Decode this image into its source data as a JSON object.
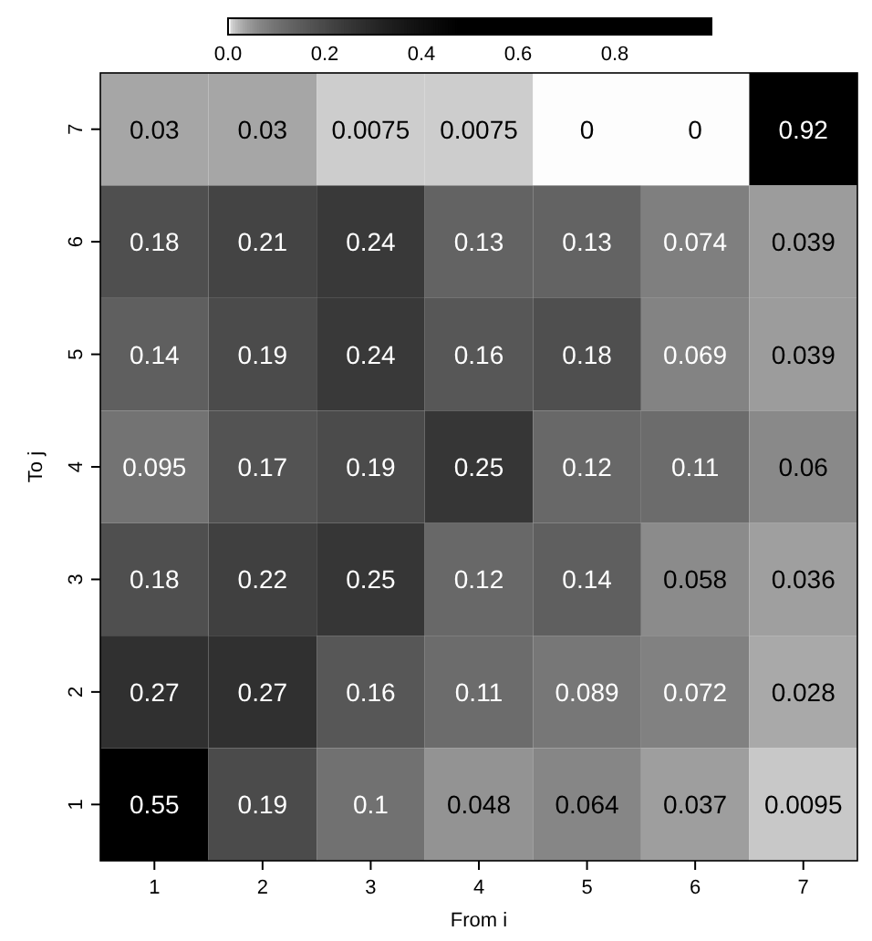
{
  "chart_data": {
    "type": "heatmap",
    "xlabel": "From i",
    "ylabel": "To j",
    "categories": [
      "1",
      "2",
      "3",
      "4",
      "5",
      "6",
      "7"
    ],
    "y_categories": [
      "7",
      "6",
      "5",
      "4",
      "3",
      "2",
      "1"
    ],
    "cells": [
      [
        0.03,
        0.03,
        0.0075,
        0.0075,
        0,
        0,
        0.92
      ],
      [
        0.18,
        0.21,
        0.24,
        0.13,
        0.13,
        0.074,
        0.039
      ],
      [
        0.14,
        0.19,
        0.24,
        0.16,
        0.18,
        0.069,
        0.039
      ],
      [
        0.095,
        0.17,
        0.19,
        0.25,
        0.12,
        0.11,
        0.06
      ],
      [
        0.18,
        0.22,
        0.25,
        0.12,
        0.14,
        0.058,
        0.036
      ],
      [
        0.27,
        0.27,
        0.16,
        0.11,
        0.089,
        0.072,
        0.028
      ],
      [
        0.55,
        0.19,
        0.1,
        0.048,
        0.064,
        0.037,
        0.0095
      ]
    ],
    "clim": [
      0,
      1
    ],
    "cticks": [
      {
        "value": 0,
        "label": "0.0"
      },
      0.2,
      0.4,
      0.6,
      0.8
    ],
    "data_labels": true
  }
}
